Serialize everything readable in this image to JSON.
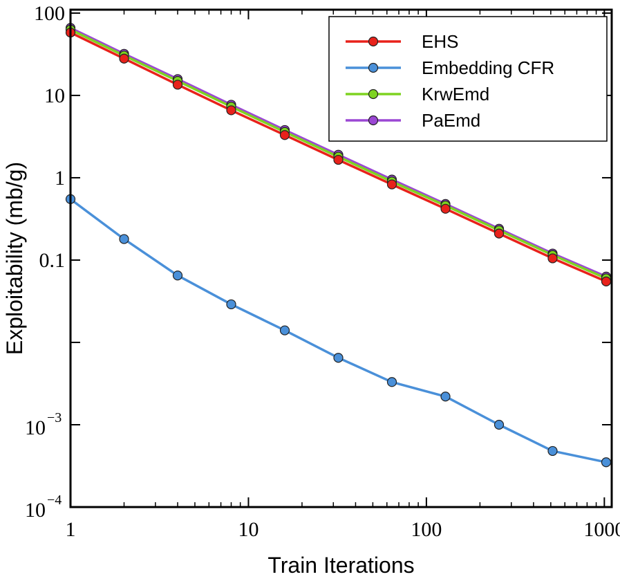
{
  "chart_data": {
    "type": "line",
    "title": "",
    "xlabel": "Train Iterations",
    "ylabel": "Exploitability (mb/g)",
    "x_scale": "log",
    "y_scale": "log",
    "xlim": [
      1,
      1100
    ],
    "ylim": [
      0.0001,
      110
    ],
    "x": [
      1,
      2,
      4,
      8,
      16,
      32,
      64,
      128,
      256,
      512,
      1024
    ],
    "x_ticks": [
      {
        "value": 1,
        "label": "1"
      },
      {
        "value": 10,
        "label": "10"
      },
      {
        "value": 100,
        "label": "100"
      },
      {
        "value": 1000,
        "label": "1000"
      }
    ],
    "y_ticks": [
      {
        "value": 100,
        "label": "100",
        "exp": ""
      },
      {
        "value": 10,
        "label": "10",
        "exp": ""
      },
      {
        "value": 1,
        "label": "1",
        "exp": ""
      },
      {
        "value": 0.1,
        "label": "0.1",
        "exp": ""
      },
      {
        "value": 0.01,
        "label": "",
        "exp": ""
      },
      {
        "value": 0.001,
        "label": "10",
        "exp": "−3"
      },
      {
        "value": 0.0001,
        "label": "10",
        "exp": "−4"
      }
    ],
    "legend_position": "top-right",
    "series": [
      {
        "name": "EHS",
        "color": "#e8221b",
        "values": [
          58,
          28,
          13.5,
          6.6,
          3.3,
          1.65,
          0.83,
          0.42,
          0.21,
          0.105,
          0.055
        ]
      },
      {
        "name": "Embedding CFR",
        "color": "#4a90d9",
        "values": [
          0.55,
          0.18,
          0.065,
          0.029,
          0.014,
          0.0065,
          0.0033,
          0.0022,
          0.001,
          0.00048,
          0.00035
        ]
      },
      {
        "name": "KrwEmd",
        "color": "#7ed321",
        "values": [
          63,
          30.5,
          15,
          7.3,
          3.6,
          1.8,
          0.9,
          0.46,
          0.23,
          0.115,
          0.06
        ]
      },
      {
        "name": "PaEmd",
        "color": "#9b47d4",
        "values": [
          66,
          32,
          15.8,
          7.7,
          3.8,
          1.9,
          0.95,
          0.48,
          0.24,
          0.12,
          0.063
        ]
      }
    ],
    "legend_order": [
      "EHS",
      "Embedding CFR",
      "KrwEmd",
      "PaEmd"
    ]
  }
}
